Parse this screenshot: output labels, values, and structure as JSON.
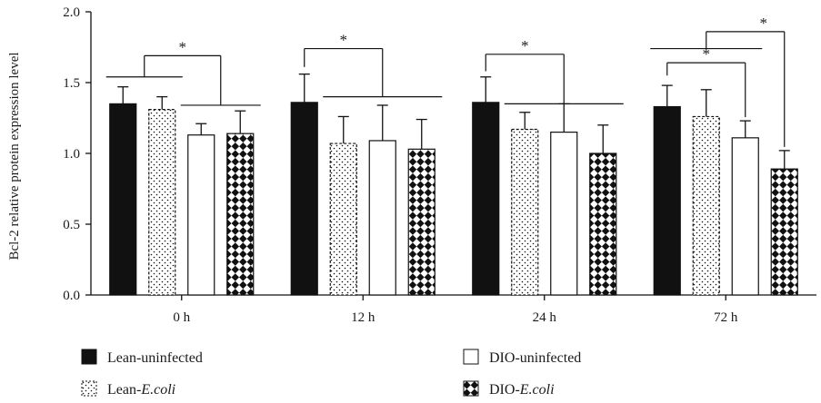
{
  "chart_data": {
    "type": "bar",
    "ylabel": "Bcl-2 relative protein expression level",
    "xlabel": "",
    "ylim": [
      0,
      2.0
    ],
    "yticks": [
      "0.0",
      "0.5",
      "1.0",
      "1.5",
      "2.0"
    ],
    "categories": [
      "0 h",
      "12 h",
      "24 h",
      "72 h"
    ],
    "series": [
      {
        "name": "Lean-uninfected",
        "name_parts": [
          "Lean-uninfected",
          ""
        ],
        "pattern": "solid",
        "values": [
          1.35,
          1.36,
          1.36,
          1.33
        ],
        "errors": [
          0.12,
          0.2,
          0.18,
          0.15
        ]
      },
      {
        "name": "Lean-E.coli",
        "name_parts": [
          "Lean-",
          "E.coli"
        ],
        "pattern": "dots",
        "values": [
          1.31,
          1.07,
          1.17,
          1.26
        ],
        "errors": [
          0.09,
          0.19,
          0.12,
          0.19
        ]
      },
      {
        "name": "DIO-uninfected",
        "name_parts": [
          "DIO-uninfected",
          ""
        ],
        "pattern": "white",
        "values": [
          1.13,
          1.09,
          1.15,
          1.11
        ],
        "errors": [
          0.08,
          0.25,
          0.2,
          0.12
        ]
      },
      {
        "name": "DIO-E.coli",
        "name_parts": [
          "DIO-",
          "E.coli"
        ],
        "pattern": "checker",
        "values": [
          1.14,
          1.03,
          1.0,
          0.89
        ],
        "errors": [
          0.16,
          0.21,
          0.2,
          0.13
        ]
      }
    ],
    "significance_marker": "*",
    "colors": {
      "bar_fill": "#111111",
      "bar_stroke": "#111111",
      "background": "#ffffff"
    }
  }
}
